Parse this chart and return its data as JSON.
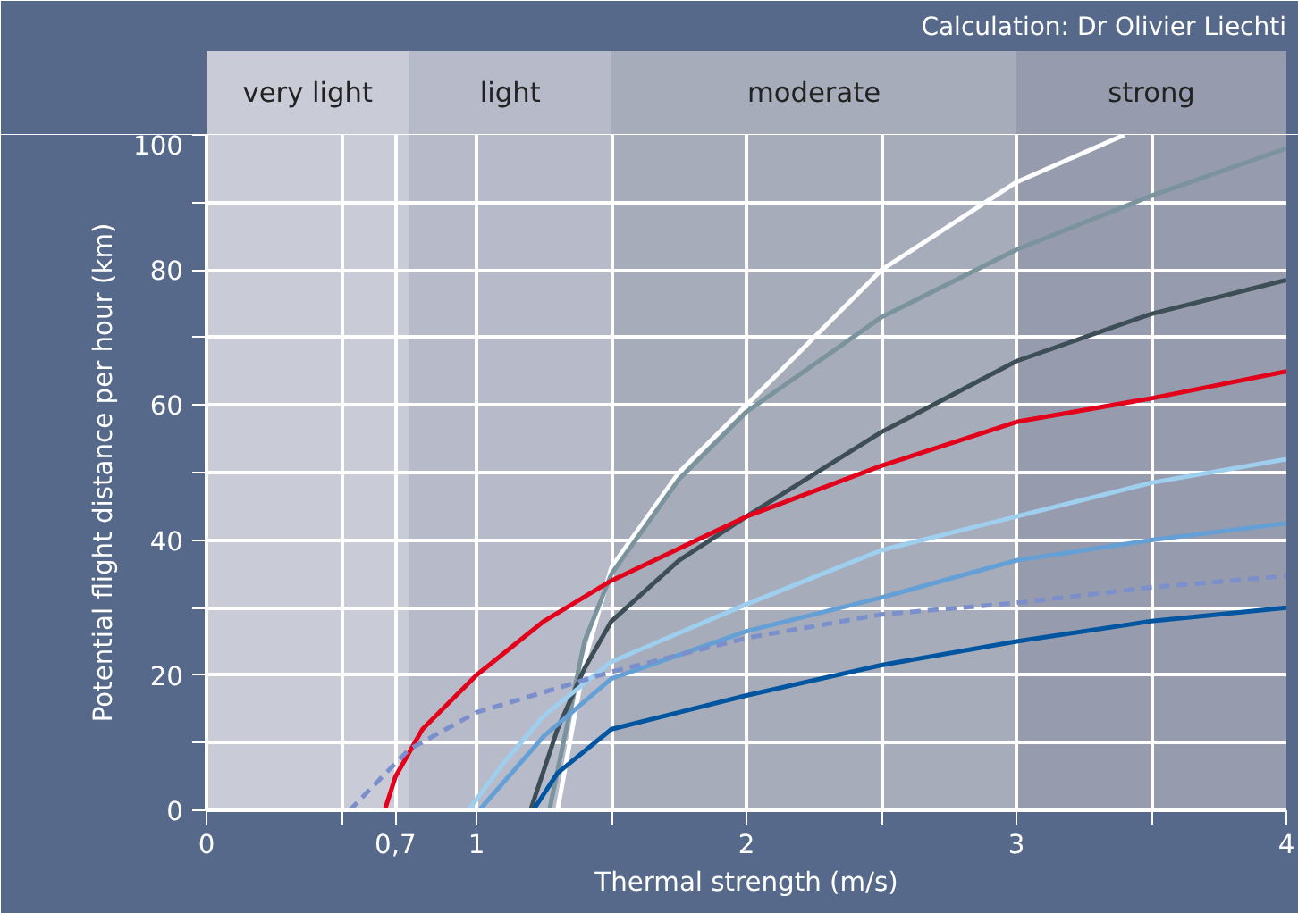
{
  "chart_data": {
    "type": "line",
    "xlabel": "Thermal strength (m/s)",
    "ylabel": "Potential flight distance per hour (km)",
    "annotations": [
      "Calculation: Dr Olivier Liechti"
    ],
    "xlim": [
      0,
      4
    ],
    "ylim": [
      0,
      100
    ],
    "xticks": [
      0,
      {
        "value": 0.5,
        "label": null
      },
      {
        "value": 0.7,
        "label": "0,7"
      },
      1,
      {
        "value": 1.5,
        "label": null
      },
      2,
      {
        "value": 2.5,
        "label": null
      },
      3,
      {
        "value": 3.5,
        "label": null
      },
      4
    ],
    "yticks": [
      0,
      {
        "value": 10,
        "label": null
      },
      20,
      {
        "value": 30,
        "label": null
      },
      40,
      {
        "value": 50,
        "label": null
      },
      60,
      {
        "value": 70,
        "label": null
      },
      80,
      {
        "value": 90,
        "label": null
      },
      100
    ],
    "grid": true,
    "bands": [
      {
        "axis": "x",
        "from": 0,
        "to": 0.75,
        "label": "very light",
        "color": "#c9ccd6"
      },
      {
        "axis": "x",
        "from": 0.75,
        "to": 1.5,
        "label": "light",
        "color": "#b7bac9"
      },
      {
        "axis": "x",
        "from": 1.5,
        "to": 3,
        "label": "moderate",
        "color": "#a6acba"
      },
      {
        "axis": "x",
        "from": 3,
        "to": 4,
        "label": "strong",
        "color": "#969cae"
      }
    ],
    "series": [
      {
        "color": "#ffffff",
        "x": [
          1.3,
          1.4,
          1.5,
          1.75,
          2,
          2.5,
          3,
          3.4
        ],
        "values": [
          0,
          22,
          36,
          50,
          60,
          80,
          93,
          100
        ]
      },
      {
        "color": "#7a939c",
        "x": [
          1.27,
          1.4,
          1.5,
          1.75,
          2,
          2.5,
          3,
          3.5,
          4
        ],
        "values": [
          0,
          25,
          35,
          49,
          59,
          73,
          83,
          91,
          98
        ]
      },
      {
        "color": "#3e4e57",
        "x": [
          1.2,
          1.3,
          1.4,
          1.5,
          1.75,
          2,
          2.5,
          3,
          3.5,
          4
        ],
        "values": [
          0,
          12,
          21,
          28,
          37,
          43.5,
          56,
          66.5,
          73.5,
          78.5
        ]
      },
      {
        "color": "#e2001a",
        "x": [
          0.66,
          0.7,
          0.8,
          1,
          1.25,
          1.5,
          2,
          2.5,
          3,
          3.5,
          4
        ],
        "values": [
          0,
          5,
          12,
          20,
          28,
          34,
          43.5,
          51,
          57.5,
          61,
          65
        ]
      },
      {
        "color": "#9fcfee",
        "x": [
          0.97,
          1.1,
          1.25,
          1.5,
          2,
          2.5,
          3,
          3.5,
          4
        ],
        "values": [
          0,
          7,
          14,
          22,
          30.5,
          38.5,
          43.5,
          48.5,
          52
        ]
      },
      {
        "color": "#64a0d6",
        "x": [
          1.01,
          1.25,
          1.5,
          2,
          2.5,
          3,
          3.5,
          4
        ],
        "values": [
          0,
          11,
          19.5,
          26.5,
          31.5,
          37,
          40,
          42.5
        ]
      },
      {
        "color": "#7b8fcc",
        "line_style": "dashed",
        "x": [
          0.53,
          0.75,
          1,
          1.5,
          2,
          2.5,
          3,
          3.5,
          4
        ],
        "values": [
          0,
          9,
          14.5,
          20.5,
          25.5,
          29,
          30.7,
          33,
          34.7
        ]
      },
      {
        "color": "#0055a0",
        "x": [
          1.21,
          1.3,
          1.5,
          2,
          2.5,
          3,
          3.5,
          4
        ],
        "values": [
          0,
          5.5,
          12,
          17,
          21.5,
          25,
          28,
          30
        ]
      }
    ]
  }
}
